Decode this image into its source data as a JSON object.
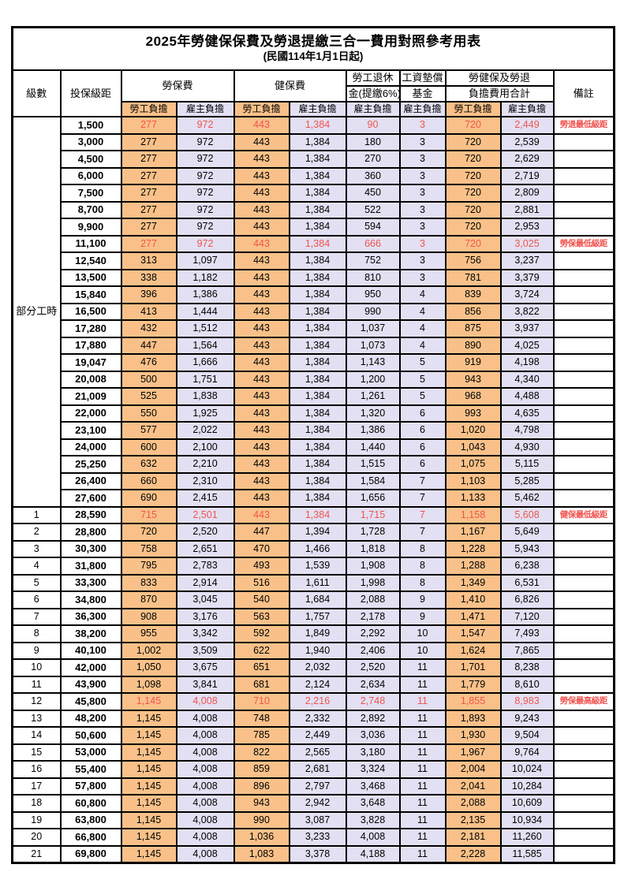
{
  "title": "2025年勞健保保費及勞退提繳三合一費用對照參考用表",
  "subtitle": "(民國114年1月1日起)",
  "header": {
    "level": "級數",
    "bracket": "投保級距",
    "labor_insurance": "勞保費",
    "health_insurance": "健保費",
    "pension_line1": "勞工退休",
    "pension_line2": "金(提繳6%)",
    "wage_fund_line1": "工資墊償",
    "wage_fund_line2": "基金",
    "total_line1": "勞健保及勞退",
    "total_line2": "負擔費用合計",
    "remark": "備註",
    "employee": "勞工負擔",
    "employer": "雇主負擔"
  },
  "part_time": {
    "label": "部分工時",
    "row_count": 23
  },
  "colors": {
    "employee_fill": "#F9C189",
    "employer_fill": "#E2E0F2",
    "highlight_red": "#F0534F",
    "border": "#000000"
  },
  "column_order": [
    "level",
    "bracket",
    "labor_employee",
    "labor_employer",
    "health_employee",
    "health_employer",
    "pension_employer",
    "fund_employer",
    "total_employee",
    "total_employer",
    "remark",
    "is_highlighted"
  ],
  "rows": [
    [
      "",
      "1,500",
      "277",
      "972",
      "443",
      "1,384",
      "90",
      "3",
      "720",
      "2,449",
      "勞退最低級距",
      true
    ],
    [
      "",
      "3,000",
      "277",
      "972",
      "443",
      "1,384",
      "180",
      "3",
      "720",
      "2,539",
      "",
      false
    ],
    [
      "",
      "4,500",
      "277",
      "972",
      "443",
      "1,384",
      "270",
      "3",
      "720",
      "2,629",
      "",
      false
    ],
    [
      "",
      "6,000",
      "277",
      "972",
      "443",
      "1,384",
      "360",
      "3",
      "720",
      "2,719",
      "",
      false
    ],
    [
      "",
      "7,500",
      "277",
      "972",
      "443",
      "1,384",
      "450",
      "3",
      "720",
      "2,809",
      "",
      false
    ],
    [
      "",
      "8,700",
      "277",
      "972",
      "443",
      "1,384",
      "522",
      "3",
      "720",
      "2,881",
      "",
      false
    ],
    [
      "",
      "9,900",
      "277",
      "972",
      "443",
      "1,384",
      "594",
      "3",
      "720",
      "2,953",
      "",
      false
    ],
    [
      "",
      "11,100",
      "277",
      "972",
      "443",
      "1,384",
      "666",
      "3",
      "720",
      "3,025",
      "勞保最低級距",
      true
    ],
    [
      "",
      "12,540",
      "313",
      "1,097",
      "443",
      "1,384",
      "752",
      "3",
      "756",
      "3,237",
      "",
      false
    ],
    [
      "",
      "13,500",
      "338",
      "1,182",
      "443",
      "1,384",
      "810",
      "3",
      "781",
      "3,379",
      "",
      false
    ],
    [
      "",
      "15,840",
      "396",
      "1,386",
      "443",
      "1,384",
      "950",
      "4",
      "839",
      "3,724",
      "",
      false
    ],
    [
      "",
      "16,500",
      "413",
      "1,444",
      "443",
      "1,384",
      "990",
      "4",
      "856",
      "3,822",
      "",
      false
    ],
    [
      "",
      "17,280",
      "432",
      "1,512",
      "443",
      "1,384",
      "1,037",
      "4",
      "875",
      "3,937",
      "",
      false
    ],
    [
      "",
      "17,880",
      "447",
      "1,564",
      "443",
      "1,384",
      "1,073",
      "4",
      "890",
      "4,025",
      "",
      false
    ],
    [
      "",
      "19,047",
      "476",
      "1,666",
      "443",
      "1,384",
      "1,143",
      "5",
      "919",
      "4,198",
      "",
      false
    ],
    [
      "",
      "20,008",
      "500",
      "1,751",
      "443",
      "1,384",
      "1,200",
      "5",
      "943",
      "4,340",
      "",
      false
    ],
    [
      "",
      "21,009",
      "525",
      "1,838",
      "443",
      "1,384",
      "1,261",
      "5",
      "968",
      "4,488",
      "",
      false
    ],
    [
      "",
      "22,000",
      "550",
      "1,925",
      "443",
      "1,384",
      "1,320",
      "6",
      "993",
      "4,635",
      "",
      false
    ],
    [
      "",
      "23,100",
      "577",
      "2,022",
      "443",
      "1,384",
      "1,386",
      "6",
      "1,020",
      "4,798",
      "",
      false
    ],
    [
      "",
      "24,000",
      "600",
      "2,100",
      "443",
      "1,384",
      "1,440",
      "6",
      "1,043",
      "4,930",
      "",
      false
    ],
    [
      "",
      "25,250",
      "632",
      "2,210",
      "443",
      "1,384",
      "1,515",
      "6",
      "1,075",
      "5,115",
      "",
      false
    ],
    [
      "",
      "26,400",
      "660",
      "2,310",
      "443",
      "1,384",
      "1,584",
      "7",
      "1,103",
      "5,285",
      "",
      false
    ],
    [
      "",
      "27,600",
      "690",
      "2,415",
      "443",
      "1,384",
      "1,656",
      "7",
      "1,133",
      "5,462",
      "",
      false
    ],
    [
      "1",
      "28,590",
      "715",
      "2,501",
      "443",
      "1,384",
      "1,715",
      "7",
      "1,158",
      "5,608",
      "健保最低級距",
      true
    ],
    [
      "2",
      "28,800",
      "720",
      "2,520",
      "447",
      "1,394",
      "1,728",
      "7",
      "1,167",
      "5,649",
      "",
      false
    ],
    [
      "3",
      "30,300",
      "758",
      "2,651",
      "470",
      "1,466",
      "1,818",
      "8",
      "1,228",
      "5,943",
      "",
      false
    ],
    [
      "4",
      "31,800",
      "795",
      "2,783",
      "493",
      "1,539",
      "1,908",
      "8",
      "1,288",
      "6,238",
      "",
      false
    ],
    [
      "5",
      "33,300",
      "833",
      "2,914",
      "516",
      "1,611",
      "1,998",
      "8",
      "1,349",
      "6,531",
      "",
      false
    ],
    [
      "6",
      "34,800",
      "870",
      "3,045",
      "540",
      "1,684",
      "2,088",
      "9",
      "1,410",
      "6,826",
      "",
      false
    ],
    [
      "7",
      "36,300",
      "908",
      "3,176",
      "563",
      "1,757",
      "2,178",
      "9",
      "1,471",
      "7,120",
      "",
      false
    ],
    [
      "8",
      "38,200",
      "955",
      "3,342",
      "592",
      "1,849",
      "2,292",
      "10",
      "1,547",
      "7,493",
      "",
      false
    ],
    [
      "9",
      "40,100",
      "1,002",
      "3,509",
      "622",
      "1,940",
      "2,406",
      "10",
      "1,624",
      "7,865",
      "",
      false
    ],
    [
      "10",
      "42,000",
      "1,050",
      "3,675",
      "651",
      "2,032",
      "2,520",
      "11",
      "1,701",
      "8,238",
      "",
      false
    ],
    [
      "11",
      "43,900",
      "1,098",
      "3,841",
      "681",
      "2,124",
      "2,634",
      "11",
      "1,779",
      "8,610",
      "",
      false
    ],
    [
      "12",
      "45,800",
      "1,145",
      "4,008",
      "710",
      "2,216",
      "2,748",
      "11",
      "1,855",
      "8,983",
      "勞保最高級距",
      true
    ],
    [
      "13",
      "48,200",
      "1,145",
      "4,008",
      "748",
      "2,332",
      "2,892",
      "11",
      "1,893",
      "9,243",
      "",
      false
    ],
    [
      "14",
      "50,600",
      "1,145",
      "4,008",
      "785",
      "2,449",
      "3,036",
      "11",
      "1,930",
      "9,504",
      "",
      false
    ],
    [
      "15",
      "53,000",
      "1,145",
      "4,008",
      "822",
      "2,565",
      "3,180",
      "11",
      "1,967",
      "9,764",
      "",
      false
    ],
    [
      "16",
      "55,400",
      "1,145",
      "4,008",
      "859",
      "2,681",
      "3,324",
      "11",
      "2,004",
      "10,024",
      "",
      false
    ],
    [
      "17",
      "57,800",
      "1,145",
      "4,008",
      "896",
      "2,797",
      "3,468",
      "11",
      "2,041",
      "10,284",
      "",
      false
    ],
    [
      "18",
      "60,800",
      "1,145",
      "4,008",
      "943",
      "2,942",
      "3,648",
      "11",
      "2,088",
      "10,609",
      "",
      false
    ],
    [
      "19",
      "63,800",
      "1,145",
      "4,008",
      "990",
      "3,087",
      "3,828",
      "11",
      "2,135",
      "10,934",
      "",
      false
    ],
    [
      "20",
      "66,800",
      "1,145",
      "4,008",
      "1,036",
      "3,233",
      "4,008",
      "11",
      "2,181",
      "11,260",
      "",
      false
    ],
    [
      "21",
      "69,800",
      "1,145",
      "4,008",
      "1,083",
      "3,378",
      "4,188",
      "11",
      "2,228",
      "11,585",
      "",
      false
    ]
  ]
}
